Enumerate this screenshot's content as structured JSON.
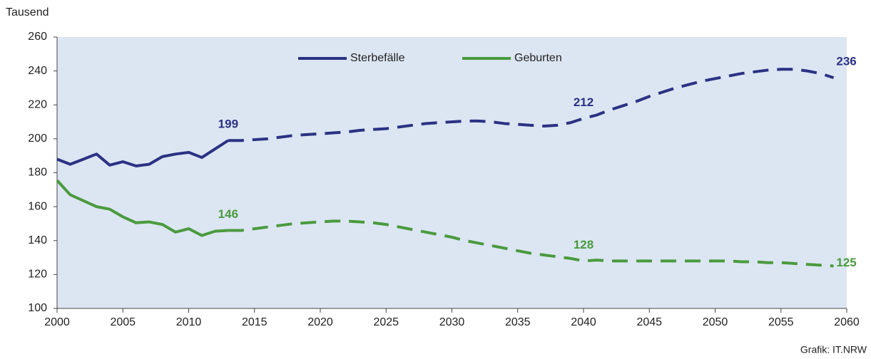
{
  "chart_data": {
    "type": "line",
    "y_axis_label": "Tausend",
    "source": "Grafik: IT.NRW",
    "x": [
      2000,
      2001,
      2002,
      2003,
      2004,
      2005,
      2006,
      2007,
      2008,
      2009,
      2010,
      2011,
      2012,
      2013,
      2014,
      2015,
      2016,
      2017,
      2018,
      2019,
      2020,
      2021,
      2022,
      2023,
      2024,
      2025,
      2026,
      2027,
      2028,
      2029,
      2030,
      2031,
      2032,
      2033,
      2034,
      2035,
      2036,
      2037,
      2038,
      2039,
      2040,
      2041,
      2042,
      2043,
      2044,
      2045,
      2046,
      2047,
      2048,
      2049,
      2050,
      2051,
      2052,
      2053,
      2054,
      2055,
      2056,
      2057,
      2058,
      2059
    ],
    "series": [
      {
        "name": "Sterbefälle",
        "color": "#2b3183",
        "dash_from": 2013,
        "values": [
          188,
          185,
          188,
          191,
          184.5,
          186.5,
          184,
          185,
          189.5,
          191,
          192,
          189,
          194,
          199,
          199,
          199.5,
          200,
          201,
          202,
          202.5,
          203,
          203.5,
          204,
          205,
          205.5,
          206,
          207,
          208,
          209,
          209.5,
          210,
          210.5,
          210.5,
          210,
          209,
          208.5,
          208,
          207.5,
          208,
          209.5,
          212,
          214,
          217,
          219.5,
          222,
          225,
          227.5,
          230,
          232,
          234,
          235.5,
          237,
          238.5,
          239.5,
          240.5,
          241,
          241,
          240,
          238.5,
          236
        ]
      },
      {
        "name": "Geburten",
        "color": "#4a9a3e",
        "dash_from": 2013,
        "values": [
          175.5,
          167,
          163.5,
          160,
          158.5,
          154,
          150.5,
          151,
          149.5,
          145,
          147,
          143,
          145.5,
          146,
          146,
          147,
          148,
          149,
          150,
          150.5,
          151,
          151.5,
          151.5,
          151,
          150.5,
          149.5,
          148,
          146.5,
          145,
          143.5,
          142,
          140,
          138.5,
          137,
          135.5,
          134,
          132.5,
          131.5,
          130.5,
          129.5,
          128,
          128.5,
          128,
          128,
          128,
          128,
          128,
          128,
          128,
          128,
          128,
          128,
          127.5,
          127.5,
          127,
          127,
          126.5,
          126,
          125.5,
          125
        ]
      }
    ],
    "annotations": [
      {
        "series": 0,
        "x": 2013,
        "y": 199
      },
      {
        "series": 0,
        "x": 2040,
        "y": 212
      },
      {
        "series": 0,
        "x": 2059,
        "y": 236
      },
      {
        "series": 1,
        "x": 2013,
        "y": 146
      },
      {
        "series": 1,
        "x": 2040,
        "y": 128
      },
      {
        "series": 1,
        "x": 2059,
        "y": 125
      }
    ],
    "xlim": [
      2000,
      2060
    ],
    "xticks": [
      2000,
      2005,
      2010,
      2015,
      2020,
      2025,
      2030,
      2035,
      2040,
      2045,
      2050,
      2055,
      2060
    ],
    "ylim": [
      100,
      260
    ],
    "yticks": [
      100,
      120,
      140,
      160,
      180,
      200,
      220,
      240,
      260
    ],
    "grid": false,
    "legend": "top"
  }
}
